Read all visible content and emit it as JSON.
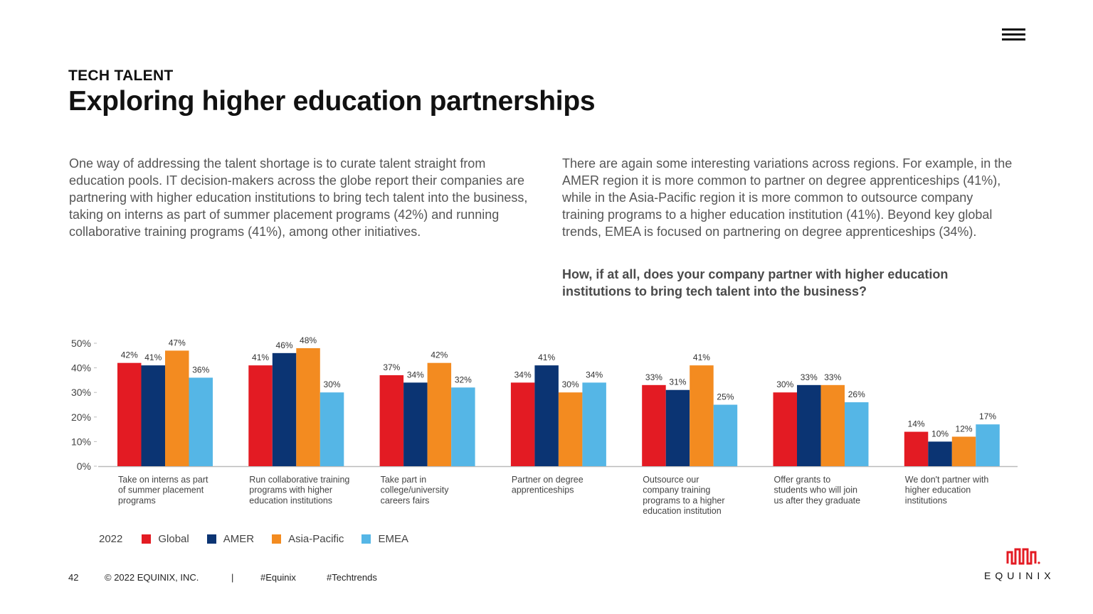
{
  "header": {
    "kicker": "TECH TALENT",
    "title": "Exploring higher education partnerships",
    "menu_icon": "hamburger-menu-icon"
  },
  "body": {
    "left_paragraph": "One way of addressing the talent shortage is to curate talent straight from education pools. IT decision-makers across the globe report their companies are partnering with higher education institutions to bring tech talent into the business, taking on interns as part of summer placement programs (42%) and running collaborative training programs (41%), among other initiatives.",
    "right_paragraph": "There are again some interesting variations across regions. For example, in the AMER region it is more common to partner on degree apprenticeships (41%), while in the Asia-Pacific region it is more common to outsource company training programs to a higher education institution (41%). Beyond key global trends, EMEA is focused on partnering on degree apprenticeships (34%).",
    "question": "How, if at all, does your company partner with higher education institutions to bring tech talent into the business?"
  },
  "chart_data": {
    "type": "bar",
    "ylim": [
      0,
      50
    ],
    "yticks": [
      "0%",
      "10%",
      "20%",
      "30%",
      "40%",
      "50%"
    ],
    "grid": false,
    "legend_position": "bottom-left",
    "categories": [
      [
        "Take on interns as part",
        "of summer placement",
        "programs"
      ],
      [
        "Run collaborative training",
        "programs with higher",
        "education institutions"
      ],
      [
        "Take part in",
        "college/university",
        "careers fairs"
      ],
      [
        "Partner on degree",
        "apprenticeships"
      ],
      [
        "Outsource our",
        "company training",
        "programs to a higher",
        "education institution"
      ],
      [
        "Offer grants to",
        "students who will join",
        "us after they graduate"
      ],
      [
        "We don't partner with",
        "higher education",
        "institutions"
      ]
    ],
    "series": [
      {
        "name": "Global",
        "color": "#E31B23",
        "values": [
          42,
          41,
          37,
          34,
          33,
          30,
          14
        ],
        "labels": [
          "42%",
          "41%",
          "37%",
          "34%",
          "33%",
          "30%",
          "14%"
        ]
      },
      {
        "name": "AMER",
        "color": "#0B3473",
        "values": [
          41,
          46,
          34,
          41,
          31,
          33,
          10
        ],
        "labels": [
          "41%",
          "46%",
          "34%",
          "41%",
          "31%",
          "33%",
          "10%"
        ]
      },
      {
        "name": "Asia-Pacific",
        "color": "#F38B20",
        "values": [
          47,
          48,
          42,
          30,
          41,
          33,
          12
        ],
        "labels": [
          "47%",
          "48%",
          "42%",
          "30%",
          "41%",
          "33%",
          "12%"
        ]
      },
      {
        "name": "EMEA",
        "color": "#55B6E6",
        "values": [
          36,
          30,
          32,
          34,
          25,
          26,
          17
        ],
        "labels": [
          "36%",
          "30%",
          "32%",
          "34%",
          "25%",
          "26%",
          "17%"
        ]
      }
    ],
    "legend_year": "2022"
  },
  "footer": {
    "page_number": "42",
    "copyright": "© 2022 EQUINIX, INC.",
    "separator": "|",
    "hashtag_1": "#Equinix",
    "hashtag_2": "#Techtrends"
  },
  "logo": {
    "wordmark": "EQUINIX",
    "color": "#E31B23",
    "icon": "equinix-logo-icon"
  }
}
